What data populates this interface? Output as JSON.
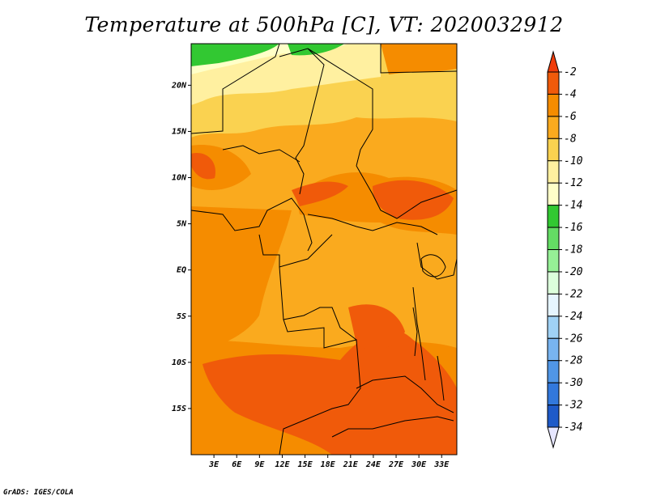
{
  "title": "Temperature at 500hPa [C], VT: 2020032912",
  "credit": "GrADS: IGES/COLA",
  "map": {
    "lat_ticks": [
      "20N",
      "15N",
      "10N",
      "5N",
      "EQ",
      "5S",
      "10S",
      "15S"
    ],
    "lat_values": [
      20,
      15,
      10,
      5,
      0,
      -5,
      -10,
      -15
    ],
    "lon_ticks": [
      "3E",
      "6E",
      "9E",
      "12E",
      "15E",
      "18E",
      "21E",
      "24E",
      "27E",
      "30E",
      "33E"
    ],
    "lon_values": [
      3,
      6,
      9,
      12,
      15,
      18,
      21,
      24,
      27,
      30,
      33
    ],
    "lat_range": [
      -20,
      24.5
    ],
    "lon_range": [
      0,
      35
    ]
  },
  "colorbar": {
    "labels": [
      "-2",
      "-4",
      "-6",
      "-8",
      "-10",
      "-12",
      "-14",
      "-16",
      "-18",
      "-20",
      "-22",
      "-24",
      "-26",
      "-28",
      "-30",
      "-32",
      "-34"
    ],
    "top_color": "#f03c0a",
    "bottom_color": "#e6e6ff",
    "colors": [
      "#f05a0a",
      "#f58c00",
      "#faaa1e",
      "#fad250",
      "#fff0a0",
      "#ffffc8",
      "#32c832",
      "#64dc64",
      "#96f096",
      "#dcffdc",
      "#e6f5ff",
      "#a0d2f5",
      "#78b4f0",
      "#5096e6",
      "#3278dc",
      "#1e5ac8",
      "#1e3ca0",
      "#0a1478"
    ]
  }
}
